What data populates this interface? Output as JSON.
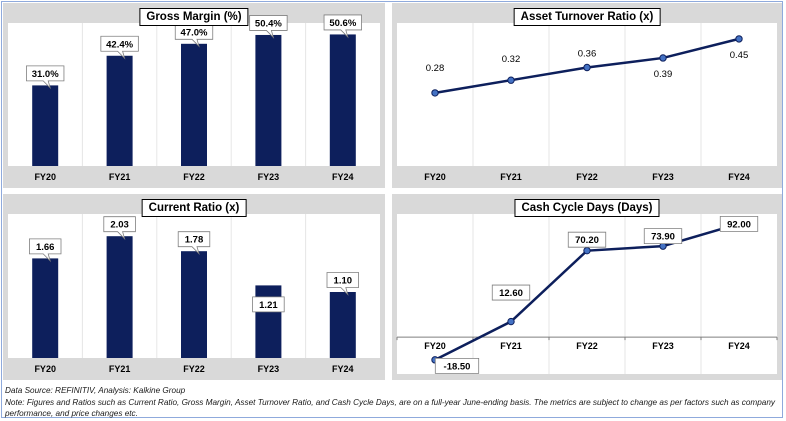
{
  "colors": {
    "bar": "#0d1f5c",
    "line": "#0d1f5c",
    "marker": "#4472c4",
    "panel_bg": "#d9d9d9"
  },
  "chart_data": [
    {
      "type": "bar",
      "title": "Gross Margin (%)",
      "categories": [
        "FY20",
        "FY21",
        "FY22",
        "FY23",
        "FY24"
      ],
      "values": [
        31.0,
        42.4,
        47.0,
        50.4,
        50.6
      ],
      "labels": [
        "31.0%",
        "42.4%",
        "47.0%",
        "50.4%",
        "50.6%"
      ],
      "ylim": [
        0,
        55
      ]
    },
    {
      "type": "line",
      "title": "Asset Turnover Ratio (x)",
      "categories": [
        "FY20",
        "FY21",
        "FY22",
        "FY23",
        "FY24"
      ],
      "values": [
        0.28,
        0.32,
        0.36,
        0.39,
        0.45
      ],
      "labels": [
        "0.28",
        "0.32",
        "0.36",
        "0.39",
        "0.45"
      ],
      "ylim": [
        0.05,
        0.5
      ]
    },
    {
      "type": "bar",
      "title": "Current Ratio (x)",
      "categories": [
        "FY20",
        "FY21",
        "FY22",
        "FY23",
        "FY24"
      ],
      "values": [
        1.66,
        2.03,
        1.78,
        1.21,
        1.1
      ],
      "labels": [
        "1.66",
        "2.03",
        "1.78",
        "1.21",
        "1.10"
      ],
      "ylim": [
        0,
        2.4
      ]
    },
    {
      "type": "line",
      "title": "Cash Cycle Days (Days)",
      "categories": [
        "FY20",
        "FY21",
        "FY22",
        "FY23",
        "FY24"
      ],
      "values": [
        -18.5,
        12.6,
        70.2,
        73.9,
        92.0
      ],
      "labels": [
        "-18.50",
        "12.60",
        "70.20",
        "73.90",
        "92.00"
      ],
      "ylim": [
        -30,
        100
      ]
    }
  ],
  "footer": {
    "source": "Data Source: REFINITIV, Analysis: Kalkine Group",
    "note": "Note: Figures and Ratios such as Current Ratio, Gross Margin, Asset Turnover Ratio, and Cash Cycle Days, are on a full-year June-ending basis. The metrics are subject to change as per factors such as company performance, and price changes etc."
  }
}
